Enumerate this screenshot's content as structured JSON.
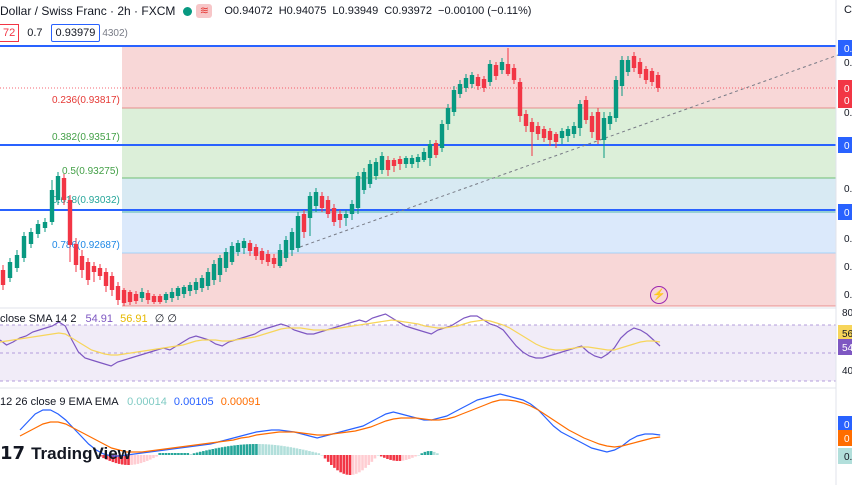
{
  "header": {
    "symbol_title": "Dollar / Swiss Franc · 2h · FXCM",
    "wave_icon": "≋",
    "ohlc": {
      "open": "O0.94072",
      "high": "H0.94075",
      "low": "L0.93949",
      "close": "C0.93972",
      "change": "−0.00100 (−0.11%)"
    },
    "top_right_letter": "C"
  },
  "subbar": {
    "sell_price_partial": "72",
    "spread": "0.7",
    "buy_price": "0.93979",
    "prev_partial": "4302)"
  },
  "fib_levels": [
    {
      "label": "0.236(0.93817)",
      "fill": "#f8d7d7"
    },
    {
      "label": "0.382(0.93517)",
      "fill": "#dcefd9"
    },
    {
      "label": "0.5(0.93275)",
      "fill": "#dcefd9"
    },
    {
      "label": "0.618(0.93032)",
      "fill": "#d8eaf3"
    },
    {
      "label": "0.786(0.92687)",
      "fill": "#dbe9fb"
    }
  ],
  "right_axis": {
    "main": [
      "0.",
      "0.",
      "0",
      "0",
      "0.",
      "0",
      "0.",
      "0",
      "0.",
      "0.",
      "0."
    ],
    "rsi": [
      "80",
      "56",
      "54",
      "40"
    ],
    "macd": [
      "0",
      "0",
      "0."
    ]
  },
  "rsi": {
    "label_prefix": "close SMA 14 2",
    "rsi_value": "54.91",
    "sma_value": "56.91",
    "extra": "∅ ∅"
  },
  "macd": {
    "label_prefix": "12 26 close 9 EMA EMA",
    "hist_value": "0.00014",
    "macd_value": "0.00105",
    "signal_value": "0.00091"
  },
  "brand": {
    "logo_mark": "17",
    "name": "TradingView"
  },
  "colors": {
    "up": "#089981",
    "down": "#f23645",
    "blue_line": "#2962ff",
    "rsi_line": "#7e57c2",
    "rsi_sma": "#f7d55a",
    "macd_line": "#2962ff",
    "signal_line": "#ff6d00"
  }
}
